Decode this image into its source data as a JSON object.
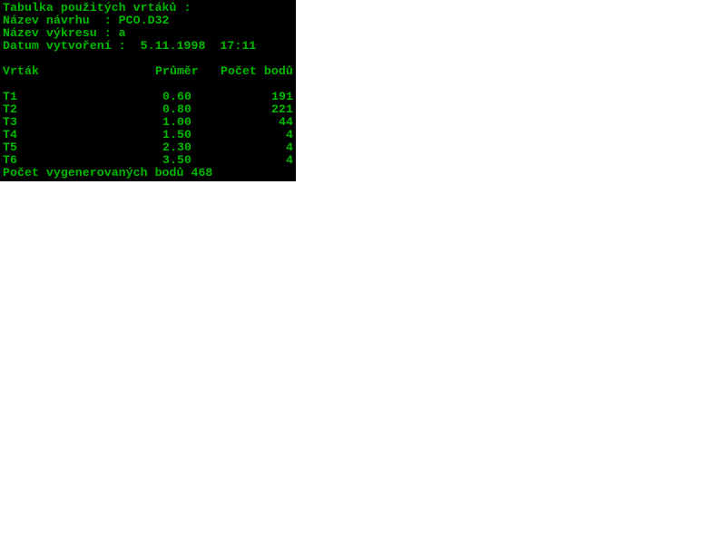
{
  "header": {
    "title": "Tabulka použitých vrtáků :",
    "design_name": "Název návrhu  : PCO.D32",
    "drawing_name": "Název výkresu : a",
    "created": "Datum vytvoření :  5.11.1998  17:11"
  },
  "table": {
    "columns": [
      "Vrták",
      "Průměr",
      "Počet bodů"
    ],
    "rows": [
      {
        "drill": "T1",
        "diameter": "0.60",
        "count": "191"
      },
      {
        "drill": "T2",
        "diameter": "0.80",
        "count": "221"
      },
      {
        "drill": "T3",
        "diameter": "1.00",
        "count": "44"
      },
      {
        "drill": "T4",
        "diameter": "1.50",
        "count": "4"
      },
      {
        "drill": "T5",
        "diameter": "2.30",
        "count": "4"
      },
      {
        "drill": "T6",
        "diameter": "3.50",
        "count": "4"
      }
    ]
  },
  "footer": {
    "total": "Počet vygenerovaných bodů 468"
  },
  "colors": {
    "background": "#000000",
    "text": "#00b800"
  }
}
